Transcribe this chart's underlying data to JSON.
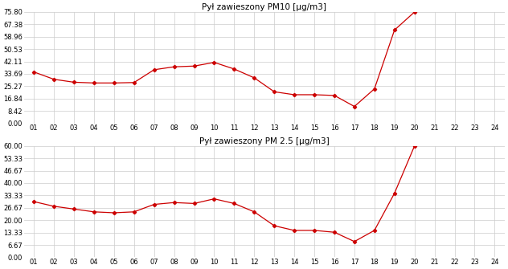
{
  "pm10": {
    "title": "Pył zawieszony PM10 [μg/m3]",
    "x": [
      1,
      2,
      3,
      4,
      5,
      6,
      7,
      8,
      9,
      10,
      11,
      12,
      13,
      14,
      15,
      16,
      17,
      18,
      19,
      20,
      21,
      22,
      23,
      24
    ],
    "y": [
      35.0,
      30.0,
      28.0,
      27.5,
      27.5,
      27.8,
      36.5,
      38.5,
      39.0,
      41.5,
      37.0,
      31.0,
      21.5,
      19.5,
      19.5,
      19.0,
      11.5,
      23.5,
      63.5,
      75.8,
      null,
      null,
      null,
      null
    ],
    "ylim": [
      0.0,
      75.8
    ],
    "yticks": [
      0.0,
      8.42,
      16.84,
      25.27,
      33.69,
      42.11,
      50.53,
      58.96,
      67.38,
      75.8
    ]
  },
  "pm25": {
    "title": "Pył zawieszony PM 2.5 [μg/m3]",
    "x": [
      1,
      2,
      3,
      4,
      5,
      6,
      7,
      8,
      9,
      10,
      11,
      12,
      13,
      14,
      15,
      16,
      17,
      18,
      19,
      20,
      21,
      22,
      23,
      24
    ],
    "y": [
      30.0,
      27.5,
      26.0,
      24.5,
      24.0,
      24.5,
      28.5,
      29.5,
      29.0,
      31.5,
      29.0,
      24.5,
      17.0,
      14.5,
      14.5,
      13.5,
      8.5,
      14.5,
      34.5,
      60.0,
      null,
      null,
      null,
      null
    ],
    "ylim": [
      0.0,
      60.0
    ],
    "yticks": [
      0.0,
      6.67,
      13.33,
      20.0,
      26.67,
      33.33,
      40.0,
      46.67,
      53.33,
      60.0
    ]
  },
  "line_color": "#cc0000",
  "marker": "D",
  "markersize": 2.2,
  "linewidth": 0.9,
  "bg_color": "#ffffff",
  "grid_color": "#cccccc",
  "title_fontsize": 7.5,
  "tick_fontsize": 6.0,
  "xtick_labels": [
    "01",
    "02",
    "03",
    "04",
    "05",
    "06",
    "07",
    "08",
    "09",
    "10",
    "11",
    "12",
    "13",
    "14",
    "15",
    "16",
    "17",
    "18",
    "19",
    "20",
    "21",
    "22",
    "23",
    "24"
  ]
}
